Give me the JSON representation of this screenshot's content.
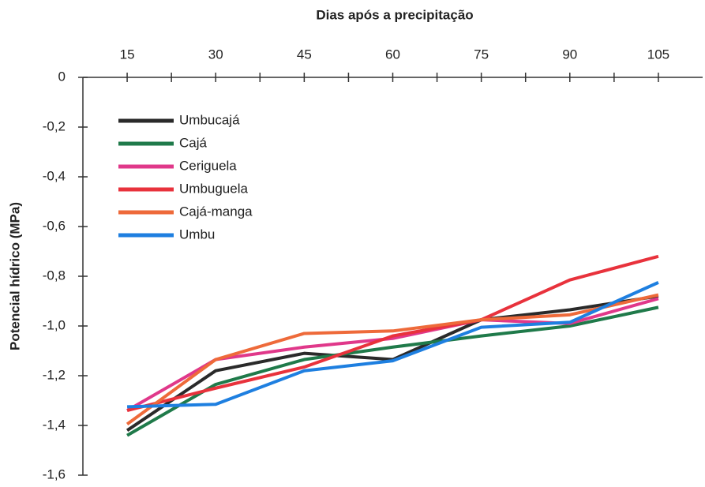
{
  "chart_data": {
    "type": "line",
    "title": "Dias após a precipitação",
    "y_label": "Potencial hídrico (MPa)",
    "x": [
      15,
      30,
      45,
      60,
      75,
      90,
      105
    ],
    "xlim": [
      7.5,
      112.5
    ],
    "xticks": [
      15,
      30,
      45,
      60,
      75,
      90,
      105
    ],
    "ylim": [
      -1.6,
      0
    ],
    "yticks": [
      0,
      {
        "value": -0.2,
        "label": "-0,2"
      },
      {
        "value": -0.4,
        "label": "-0,4"
      },
      {
        "value": -0.6,
        "label": "-0,6"
      },
      {
        "value": -0.8,
        "label": "-0,8"
      },
      {
        "value": -1.0,
        "label": "-1,0"
      },
      {
        "value": -1.2,
        "label": "-1,2"
      },
      {
        "value": -1.4,
        "label": "-1,4"
      },
      {
        "value": -1.6,
        "label": "-1,6"
      }
    ],
    "legend": "upper left",
    "series": [
      {
        "name": "Umbucajá",
        "color": "#2a2a2a",
        "values": [
          -1.42,
          -1.18,
          -1.11,
          -1.135,
          -0.975,
          -0.935,
          -0.88
        ]
      },
      {
        "name": "Cajá",
        "color": "#1f7a4a",
        "values": [
          -1.44,
          -1.235,
          -1.135,
          -1.085,
          -1.04,
          -1.0,
          -0.925
        ]
      },
      {
        "name": "Ceriguela",
        "color": "#e0388a",
        "values": [
          -1.34,
          -1.135,
          -1.085,
          -1.05,
          -0.975,
          -0.99,
          -0.89
        ]
      },
      {
        "name": "Umbuguela",
        "color": "#e8323c",
        "values": [
          -1.34,
          -1.25,
          -1.165,
          -1.04,
          -0.975,
          -0.815,
          -0.72
        ]
      },
      {
        "name": "Cajá-manga",
        "color": "#ee6a3a",
        "values": [
          -1.395,
          -1.135,
          -1.03,
          -1.02,
          -0.975,
          -0.955,
          -0.875
        ]
      },
      {
        "name": "Umbu",
        "color": "#1e7fe0",
        "values": [
          -1.325,
          -1.315,
          -1.18,
          -1.14,
          -1.005,
          -0.985,
          -0.825
        ]
      }
    ]
  }
}
